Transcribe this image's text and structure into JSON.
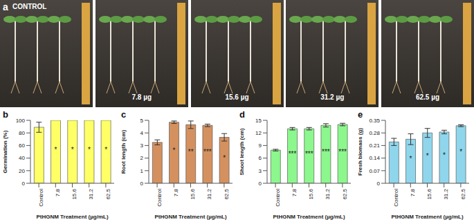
{
  "panel_a": {
    "label": "a",
    "images": [
      "CONTROL",
      "7.8 µg",
      "15.6 µg",
      "31.2 µg",
      "62.5 µg"
    ]
  },
  "chart_data": [
    {
      "type": "bar",
      "title": "b",
      "categories": [
        "Control",
        "7.8",
        "15.6",
        "31.2",
        "62.5"
      ],
      "values": [
        89,
        100,
        100,
        100,
        100
      ],
      "errors": [
        8,
        0,
        0,
        0,
        0
      ],
      "significance": [
        null,
        "*",
        "*",
        "*",
        "*"
      ],
      "color": "#ffff66",
      "x_label": "PtHGNM Treatment (µg/mL)",
      "y_label": "Germination (%)",
      "ylim": [
        0,
        100
      ],
      "yticks": [
        0,
        20,
        40,
        60,
        80,
        100
      ]
    },
    {
      "type": "bar",
      "title": "c",
      "categories": [
        "Control",
        "7.8",
        "15.6",
        "31.2",
        "62.5"
      ],
      "values": [
        3.25,
        4.85,
        4.65,
        4.6,
        3.65
      ],
      "errors": [
        0.2,
        0.1,
        0.3,
        0.1,
        0.3
      ],
      "significance": [
        null,
        "*",
        "**",
        "***",
        "*"
      ],
      "color": "#d4915f",
      "x_label": "PtHGNM Treatment (µg/mL)",
      "y_label": "Root length (cm)",
      "ylim": [
        0,
        5
      ],
      "yticks": [
        0,
        1,
        2,
        3,
        4,
        5
      ]
    },
    {
      "type": "bar",
      "title": "d",
      "categories": [
        "Control",
        "7.8",
        "15.6",
        "31.2",
        "62.5"
      ],
      "values": [
        7.9,
        13.0,
        13.0,
        13.8,
        14.0
      ],
      "errors": [
        0.2,
        0.3,
        0.3,
        0.4,
        0.3
      ],
      "significance": [
        null,
        "***",
        "***",
        "***",
        "***"
      ],
      "color": "#8cf78c",
      "x_label": "PtHGNM Treatment (µg/mL)",
      "y_label": "Shoot length (cm)",
      "ylim": [
        0,
        15
      ],
      "yticks": [
        0,
        3,
        6,
        9,
        12,
        15
      ]
    },
    {
      "type": "bar",
      "title": "e",
      "categories": [
        "Control",
        "7.8",
        "15.6",
        "31.2",
        "62.5"
      ],
      "values": [
        0.23,
        0.245,
        0.28,
        0.285,
        0.32
      ],
      "errors": [
        0.02,
        0.03,
        0.025,
        0.01,
        0.005
      ],
      "significance": [
        null,
        "*",
        "*",
        "*",
        "*"
      ],
      "color": "#8fd6ec",
      "x_label": "PtHGNM Treatment (µg/mL)",
      "y_label": "Fresh biomass (g)",
      "ylim": [
        0,
        0.35
      ],
      "yticks": [
        0,
        0.07,
        0.14,
        0.21,
        0.28,
        0.35
      ]
    }
  ]
}
